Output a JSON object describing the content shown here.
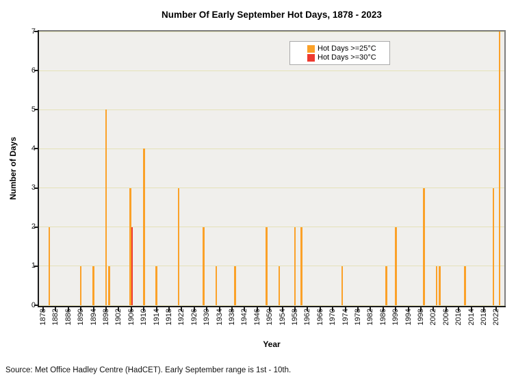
{
  "source_note": "Source: Met Office Hadley Centre (HadCET). Early September range is 1st - 10th.",
  "colors": {
    "accent_orange": "#FBA128",
    "accent_red": "#EE3A30",
    "plot_bg": "#F0EFEC",
    "gridline": "#E4E1B8",
    "axis_dark": "#1a1a1a",
    "frame_gray": "#7e7e7e",
    "legend_border": "#a9a9a9"
  },
  "chart_data": {
    "type": "bar",
    "title": "Number Of Early September Hot Days, 1878 - 2023",
    "xlabel": "Year",
    "ylabel": "Number of Days",
    "xlim": [
      1876.7,
      2024.5
    ],
    "ylim": [
      0,
      7
    ],
    "grid": true,
    "legend_position": "top-center",
    "x_ticks": [
      1878,
      1882,
      1886,
      1890,
      1894,
      1898,
      1902,
      1906,
      1910,
      1914,
      1918,
      1922,
      1926,
      1930,
      1934,
      1938,
      1942,
      1946,
      1950,
      1954,
      1958,
      1962,
      1966,
      1970,
      1974,
      1978,
      1982,
      1986,
      1990,
      1994,
      1998,
      2002,
      2006,
      2010,
      2014,
      2018,
      2022
    ],
    "y_ticks": [
      0,
      1,
      2,
      3,
      4,
      5,
      6,
      7
    ],
    "series": [
      {
        "name": "Hot Days >=25°C",
        "color": "#FBA128",
        "points": [
          {
            "year": 1880,
            "value": 2
          },
          {
            "year": 1890,
            "value": 1
          },
          {
            "year": 1894,
            "value": 1
          },
          {
            "year": 1898,
            "value": 5
          },
          {
            "year": 1899,
            "value": 1
          },
          {
            "year": 1906,
            "value": 3
          },
          {
            "year": 1910,
            "value": 4
          },
          {
            "year": 1914,
            "value": 1
          },
          {
            "year": 1921,
            "value": 3
          },
          {
            "year": 1929,
            "value": 2
          },
          {
            "year": 1933,
            "value": 1
          },
          {
            "year": 1939,
            "value": 1
          },
          {
            "year": 1949,
            "value": 2
          },
          {
            "year": 1953,
            "value": 1
          },
          {
            "year": 1958,
            "value": 2
          },
          {
            "year": 1960,
            "value": 2
          },
          {
            "year": 1973,
            "value": 1
          },
          {
            "year": 1987,
            "value": 1
          },
          {
            "year": 1990,
            "value": 2
          },
          {
            "year": 1999,
            "value": 3
          },
          {
            "year": 2003,
            "value": 1
          },
          {
            "year": 2004,
            "value": 1
          },
          {
            "year": 2012,
            "value": 1
          },
          {
            "year": 2021,
            "value": 3
          },
          {
            "year": 2023,
            "value": 7
          }
        ]
      },
      {
        "name": "Hot Days >=30°C",
        "color": "#EE3A30",
        "points": [
          {
            "year": 1906,
            "value": 2
          }
        ]
      }
    ]
  }
}
